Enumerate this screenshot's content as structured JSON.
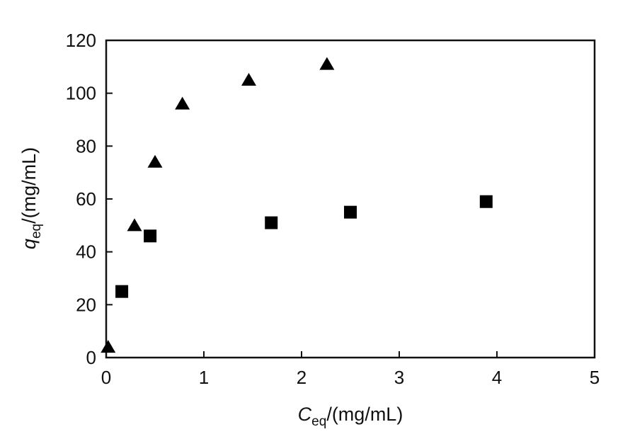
{
  "chart_data": {
    "type": "scatter",
    "title": "",
    "xlabel": {
      "symbol": "C",
      "sub": "eq",
      "unit": "/(mg/mL)"
    },
    "ylabel": {
      "symbol": "q",
      "sub": "eq",
      "unit": "/(mg/mL)"
    },
    "xlim": [
      0,
      5
    ],
    "ylim": [
      0,
      120
    ],
    "xticks": [
      "0",
      "1",
      "2",
      "3",
      "4",
      "5"
    ],
    "yticks": [
      "0",
      "20",
      "40",
      "60",
      "80",
      "100",
      "120"
    ],
    "xtick_values": [
      0,
      1,
      2,
      3,
      4,
      5
    ],
    "ytick_values": [
      0,
      20,
      40,
      60,
      80,
      100,
      120
    ],
    "grid": false,
    "legend": "none",
    "series": [
      {
        "marker": "triangle",
        "color": "#000000",
        "points": [
          [
            0.02,
            4
          ],
          [
            0.29,
            50
          ],
          [
            0.5,
            74
          ],
          [
            0.78,
            96
          ],
          [
            1.46,
            105
          ],
          [
            2.26,
            111
          ]
        ]
      },
      {
        "marker": "square",
        "color": "#000000",
        "points": [
          [
            0.16,
            25
          ],
          [
            0.45,
            46
          ],
          [
            1.69,
            51
          ],
          [
            2.5,
            55
          ],
          [
            3.89,
            59
          ]
        ]
      }
    ]
  }
}
